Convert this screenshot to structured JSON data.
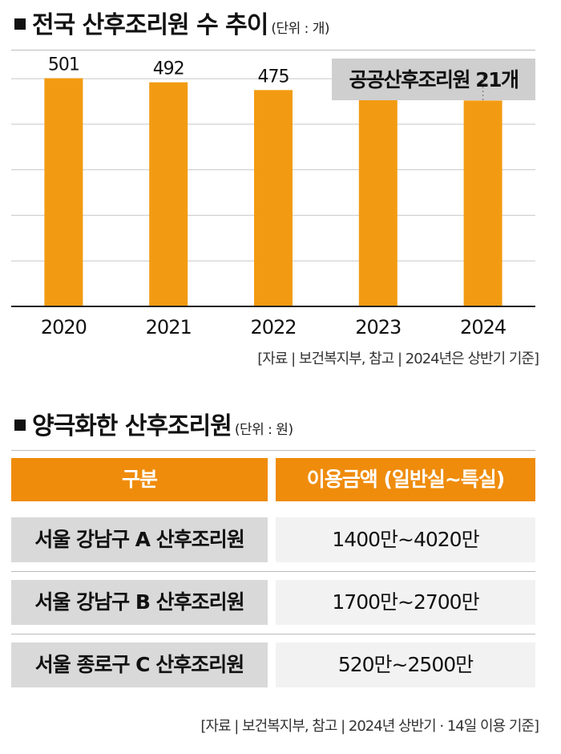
{
  "chart_section": {
    "title": "전국 산후조리원 수 추이",
    "unit": "(단위 : 개)",
    "source": "[자료 | 보건복지부, 참고 | 2024년은 상반기 기준]"
  },
  "chart_data": {
    "type": "bar",
    "categories": [
      "2020",
      "2021",
      "2022",
      "2023",
      "2024"
    ],
    "values": [
      501,
      492,
      475,
      456,
      452
    ],
    "ylim": [
      0,
      560
    ],
    "grid": true,
    "bar_color": "#f29b12",
    "annotation": {
      "text": "공공산후조리원 21개",
      "category": "2024"
    }
  },
  "table_section": {
    "title": "양극화한 산후조리원",
    "unit": "(단위 : 원)",
    "headers": [
      "구분",
      "이용금액 (일반실~특실)"
    ],
    "rows": [
      {
        "name": "서울 강남구 A 산후조리원",
        "price": "1400만~4020만"
      },
      {
        "name": "서울 강남구 B 산후조리원",
        "price": "1700만~2700만"
      },
      {
        "name": "서울 종로구 C 산후조리원",
        "price": "520만~2500만"
      }
    ],
    "source": "[자료 | 보건복지부, 참고 | 2024년 상반기 · 14일 이용 기준]",
    "header_color": "#ef8c0c"
  }
}
